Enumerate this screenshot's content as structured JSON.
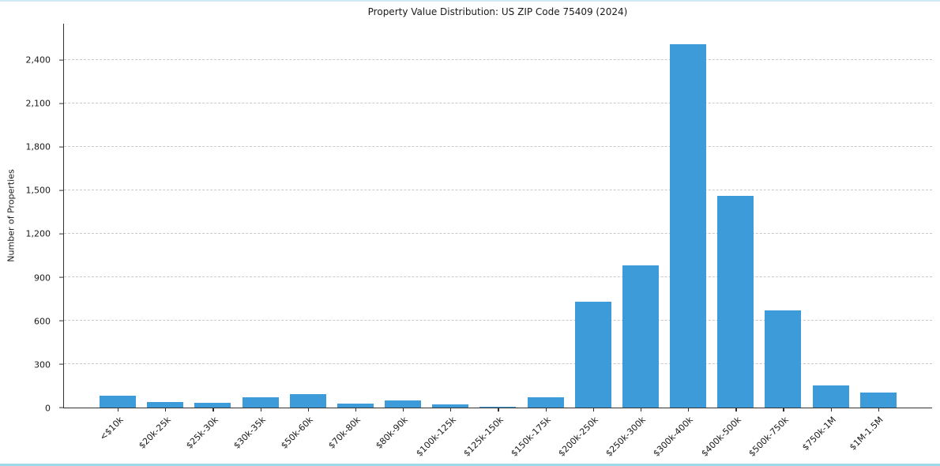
{
  "chart_data": {
    "type": "bar",
    "title": "Property Value Distribution: US ZIP Code 75409 (2024)",
    "xlabel": "",
    "ylabel": "Number of Properties",
    "categories": [
      "<$10k",
      "$20k-25k",
      "$25k-30k",
      "$30k-35k",
      "$50k-60k",
      "$70k-80k",
      "$80k-90k",
      "$100k-125k",
      "$125k-150k",
      "$150k-175k",
      "$200k-250k",
      "$250k-300k",
      "$300k-400k",
      "$400k-500k",
      "$500k-750k",
      "$750k-1M",
      "$1M-1.5M"
    ],
    "values": [
      80,
      40,
      35,
      70,
      95,
      30,
      50,
      20,
      5,
      70,
      730,
      980,
      2510,
      1460,
      670,
      155,
      105
    ],
    "ylim": [
      0,
      2650
    ],
    "yticks": [
      0,
      300,
      600,
      900,
      1200,
      1500,
      1800,
      2100,
      2400
    ],
    "ytick_labels": [
      "0",
      "300",
      "600",
      "900",
      "1,200",
      "1,500",
      "1,800",
      "2,100",
      "2,400"
    ],
    "grid": "horizontal-dashed",
    "legend": "none"
  },
  "colors": {
    "bar": "#3d9bd9",
    "grid": "#c9c9c9",
    "axis": "#333333",
    "background": "#ffffff",
    "frame_line_top": "#cfeaf2",
    "frame_line_bottom": "#9ed9ec"
  }
}
